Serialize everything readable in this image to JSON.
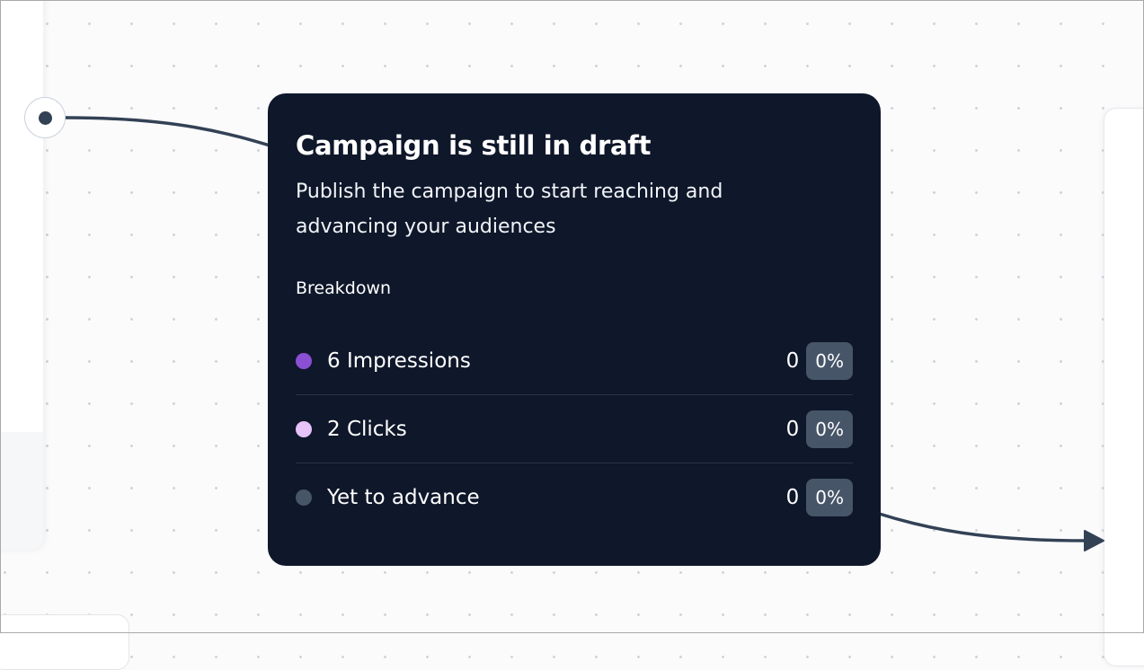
{
  "tooltip": {
    "title": "Campaign is still in draft",
    "description": "Publish the campaign to start reaching and advancing your audiences",
    "breakdown_label": "Breakdown",
    "rows": [
      {
        "label": "6 Impressions",
        "count": "0",
        "percent": "0%",
        "color": "#8b4fd3"
      },
      {
        "label": "2 Clicks",
        "count": "0",
        "percent": "0%",
        "color": "#e6c3f8"
      },
      {
        "label": "Yet to advance",
        "count": "0",
        "percent": "0%",
        "color": "#475569"
      }
    ]
  },
  "colors": {
    "tooltip_bg": "#0f172a",
    "edge": "#334155",
    "canvas": "#fbfbfc"
  }
}
